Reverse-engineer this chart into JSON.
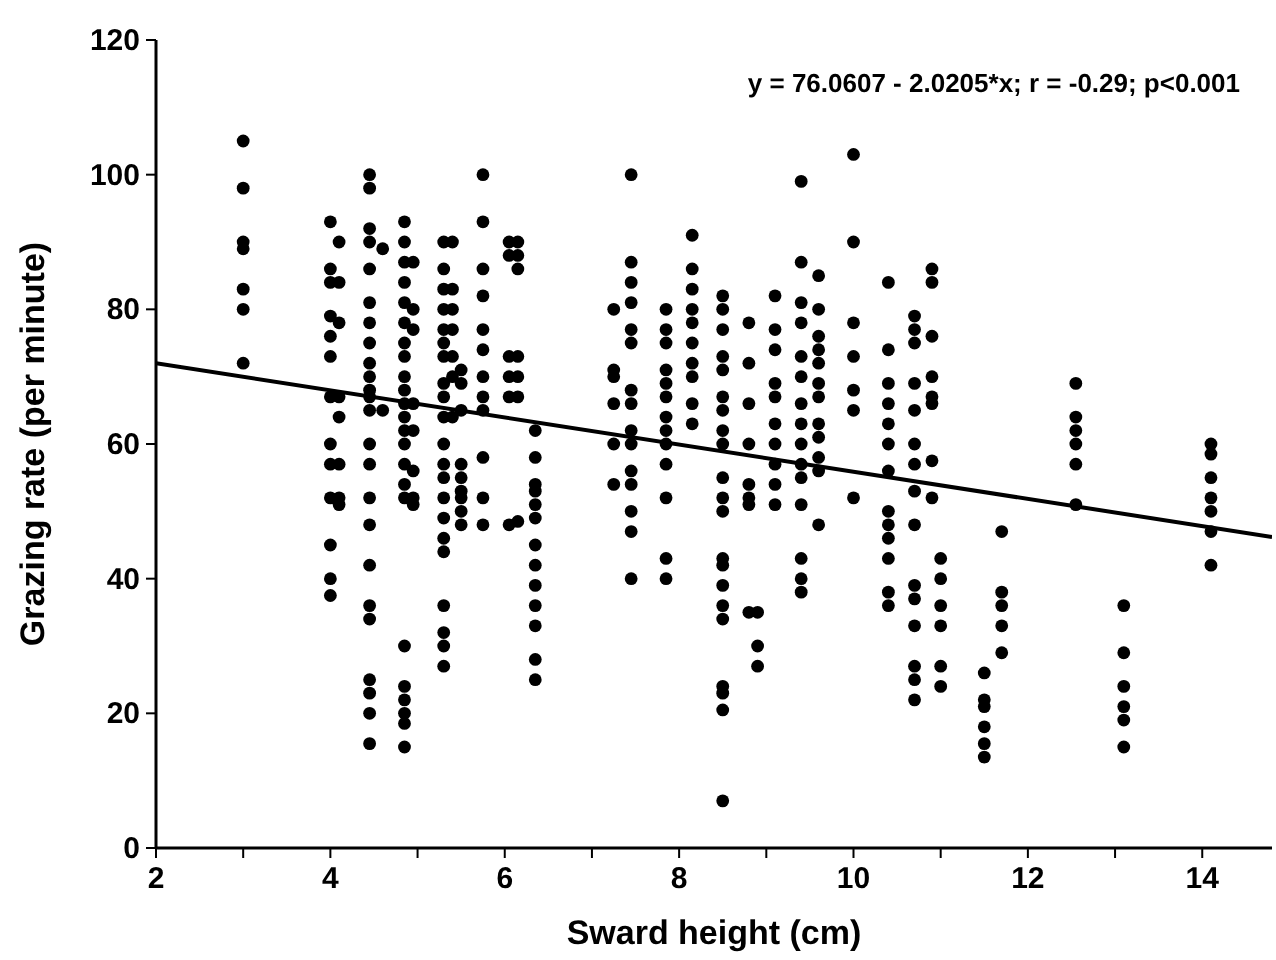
{
  "chart_data": {
    "type": "scatter",
    "xlabel": "Sward height (cm)",
    "ylabel": "Grazing rate (per minute)",
    "xlim": [
      2,
      14.8
    ],
    "ylim": [
      0,
      120
    ],
    "xticks": [
      2,
      {
        "value": 3,
        "label": null
      },
      4,
      {
        "value": 5,
        "label": null
      },
      6,
      {
        "value": 7,
        "label": null
      },
      8,
      {
        "value": 9,
        "label": null
      },
      10,
      {
        "value": 11,
        "label": null
      },
      12,
      {
        "value": 13,
        "label": null
      },
      14
    ],
    "yticks": [
      0,
      20,
      40,
      60,
      80,
      100,
      120
    ],
    "grid": false,
    "annotations": [
      "y = 76.0607 - 2.0205*x; r = -0.29; p<0.001"
    ],
    "series": [
      {
        "color": "#000000",
        "marker": "circle",
        "x": [
          3,
          3,
          3,
          3,
          3,
          3,
          3,
          4,
          4,
          4,
          4,
          4,
          4,
          4,
          4,
          4,
          4,
          4,
          4,
          4,
          4.1,
          4.1,
          4.1,
          4.1,
          4.1,
          4.1,
          4.1,
          4.1,
          4.45,
          4.45,
          4.45,
          4.45,
          4.45,
          4.45,
          4.45,
          4.45,
          4.45,
          4.45,
          4.45,
          4.45,
          4.45,
          4.45,
          4.45,
          4.45,
          4.45,
          4.45,
          4.45,
          4.45,
          4.45,
          4.45,
          4.45,
          4.45,
          4.6,
          4.6,
          4.85,
          4.85,
          4.85,
          4.85,
          4.85,
          4.85,
          4.85,
          4.85,
          4.85,
          4.85,
          4.85,
          4.85,
          4.85,
          4.85,
          4.85,
          4.85,
          4.85,
          4.85,
          4.85,
          4.85,
          4.85,
          4.85,
          4.85,
          4.95,
          4.95,
          4.95,
          4.95,
          4.95,
          4.95,
          4.95,
          4.95,
          5.3,
          5.3,
          5.3,
          5.3,
          5.3,
          5.3,
          5.3,
          5.3,
          5.3,
          5.3,
          5.3,
          5.3,
          5.3,
          5.3,
          5.3,
          5.3,
          5.3,
          5.3,
          5.3,
          5.3,
          5.3,
          5.4,
          5.4,
          5.4,
          5.4,
          5.4,
          5.4,
          5.4,
          5.5,
          5.5,
          5.5,
          5.5,
          5.5,
          5.5,
          5.5,
          5.5,
          5.5,
          5.75,
          5.75,
          5.75,
          5.75,
          5.75,
          5.75,
          5.75,
          5.75,
          5.75,
          5.75,
          5.75,
          5.75,
          6.05,
          6.05,
          6.05,
          6.05,
          6.05,
          6.05,
          6.15,
          6.15,
          6.15,
          6.15,
          6.15,
          6.15,
          6.15,
          6.35,
          6.35,
          6.35,
          6.35,
          6.35,
          6.35,
          6.35,
          6.35,
          6.35,
          6.35,
          6.35,
          6.35,
          6.35,
          7.25,
          7.25,
          7.25,
          7.25,
          7.25,
          7.25,
          7.45,
          7.45,
          7.45,
          7.45,
          7.45,
          7.45,
          7.45,
          7.45,
          7.45,
          7.45,
          7.45,
          7.45,
          7.45,
          7.45,
          7.45,
          7.85,
          7.85,
          7.85,
          7.85,
          7.85,
          7.85,
          7.85,
          7.85,
          7.85,
          7.85,
          7.85,
          7.85,
          7.85,
          8.15,
          8.15,
          8.15,
          8.15,
          8.15,
          8.15,
          8.15,
          8.15,
          8.15,
          8.15,
          8.5,
          8.5,
          8.5,
          8.5,
          8.5,
          8.5,
          8.5,
          8.5,
          8.5,
          8.5,
          8.5,
          8.5,
          8.5,
          8.5,
          8.5,
          8.5,
          8.5,
          8.5,
          8.5,
          8.5,
          8.5,
          8.8,
          8.8,
          8.8,
          8.8,
          8.8,
          8.8,
          8.8,
          8.8,
          8.9,
          8.9,
          8.9,
          9.1,
          9.1,
          9.1,
          9.1,
          9.1,
          9.1,
          9.1,
          9.1,
          9.1,
          9.1,
          9.4,
          9.4,
          9.4,
          9.4,
          9.4,
          9.4,
          9.4,
          9.4,
          9.4,
          9.4,
          9.4,
          9.4,
          9.4,
          9.4,
          9.4,
          9.6,
          9.6,
          9.6,
          9.6,
          9.6,
          9.6,
          9.6,
          9.6,
          9.6,
          9.6,
          9.6,
          9.6,
          10,
          10,
          10,
          10,
          10,
          10,
          10,
          10.4,
          10.4,
          10.4,
          10.4,
          10.4,
          10.4,
          10.4,
          10.4,
          10.4,
          10.4,
          10.4,
          10.4,
          10.4,
          10.7,
          10.7,
          10.7,
          10.7,
          10.7,
          10.7,
          10.7,
          10.7,
          10.7,
          10.7,
          10.7,
          10.7,
          10.7,
          10.7,
          10.7,
          10.9,
          10.9,
          10.9,
          10.9,
          10.9,
          10.9,
          10.9,
          10.9,
          11,
          11,
          11,
          11,
          11,
          11,
          11.5,
          11.5,
          11.5,
          11.5,
          11.5,
          11.5,
          11.7,
          11.7,
          11.7,
          11.7,
          11.7,
          12.55,
          12.55,
          12.55,
          12.55,
          12.55,
          12.55,
          13.1,
          13.1,
          13.1,
          13.1,
          13.1,
          13.1,
          14.1,
          14.1,
          14.1,
          14.1,
          14.1,
          14.1,
          14.1
        ],
        "values": [
          105,
          98,
          90,
          89,
          83,
          80,
          72,
          93,
          86,
          84,
          79,
          76,
          73,
          67,
          60,
          57,
          52,
          45,
          40,
          37.5,
          90,
          84,
          78,
          67,
          64,
          57,
          52,
          51,
          100,
          98,
          92,
          90,
          86,
          81,
          78,
          75,
          72,
          70,
          68,
          67,
          65,
          60,
          57,
          52,
          48,
          42,
          36,
          34,
          25,
          23,
          20,
          15.5,
          89,
          65,
          93,
          90,
          87,
          84,
          81,
          78,
          75,
          73,
          70,
          68,
          66,
          64,
          62,
          60,
          57,
          54,
          52,
          30,
          24,
          22,
          20,
          18.5,
          15,
          87,
          80,
          77,
          66,
          62,
          56,
          52,
          51,
          90,
          86,
          83,
          80,
          77,
          75,
          73,
          69,
          67,
          64,
          60,
          57,
          55,
          52,
          49,
          46,
          44,
          36,
          32,
          30,
          27,
          90,
          83,
          80,
          77,
          73,
          70,
          64,
          71,
          69,
          65,
          57,
          55,
          53,
          52,
          50,
          48,
          100,
          93,
          86,
          82,
          77,
          74,
          70,
          67,
          65,
          58,
          52,
          48,
          90,
          88,
          73,
          70,
          67,
          48,
          90,
          88,
          86,
          73,
          70,
          67,
          48.5,
          62,
          58,
          54,
          53,
          51,
          49,
          45,
          42,
          39,
          36,
          33,
          28,
          25,
          80,
          71,
          70,
          66,
          60,
          54,
          100,
          87,
          84,
          81,
          77,
          75,
          68,
          66,
          62,
          60,
          56,
          54,
          50,
          47,
          40,
          80,
          77,
          75,
          71,
          69,
          67,
          64,
          62,
          60,
          57,
          52,
          43,
          40,
          91,
          86,
          83,
          80,
          78,
          75,
          72,
          70,
          66,
          63,
          82,
          80,
          77,
          73,
          71,
          67,
          65,
          62,
          60,
          55,
          52,
          50,
          43,
          42,
          39,
          36,
          34,
          24,
          23,
          20.5,
          7,
          78,
          72,
          66,
          60,
          54,
          52,
          51,
          35,
          35,
          30,
          27,
          82,
          77,
          74,
          69,
          67,
          63,
          60,
          57,
          54,
          51,
          99,
          87,
          81,
          78,
          73,
          70,
          66,
          63,
          60,
          57,
          55,
          51,
          43,
          40,
          38,
          85,
          80,
          76,
          74,
          72,
          69,
          67,
          63,
          61,
          58,
          56,
          48,
          103,
          90,
          78,
          73,
          68,
          65,
          52,
          84,
          74,
          69,
          66,
          63,
          60,
          56,
          50,
          48,
          46,
          43,
          38,
          36,
          79,
          77,
          75,
          69,
          65,
          60,
          57,
          53,
          48,
          39,
          37,
          33,
          27,
          25,
          22,
          86,
          84,
          76,
          70,
          67,
          66,
          57.5,
          52,
          43,
          40,
          36,
          33,
          27,
          24,
          26,
          22,
          21,
          18,
          15.5,
          13.5,
          47,
          38,
          36,
          33,
          29,
          69,
          64,
          62,
          60,
          57,
          51,
          36,
          29,
          24,
          21,
          19,
          15,
          60,
          58.5,
          55,
          52,
          50,
          47,
          42
        ]
      },
      {
        "type": "line",
        "color": "#000000",
        "marker": "none",
        "line_style": "solid",
        "x": [
          2,
          14.8
        ],
        "values": [
          72,
          46.2
        ]
      }
    ]
  }
}
